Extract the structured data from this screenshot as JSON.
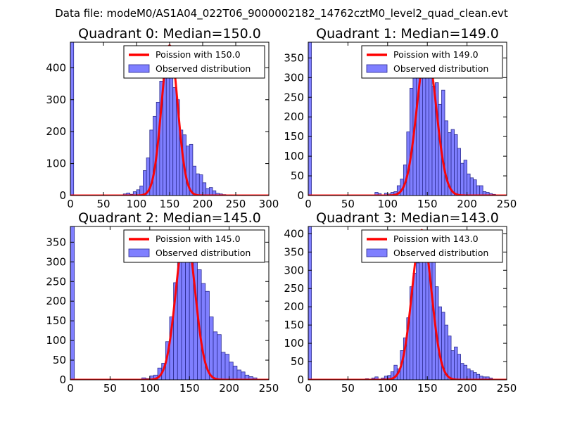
{
  "suptitle": "Data file: modeM0/AS1A04_022T06_9000002182_14762cztM0_level2_quad_clean.evt",
  "colors": {
    "bar_fill": "#7f7fff",
    "bar_edge": "#2a2a8f",
    "fit_line": "#ff0000",
    "axes": "#000000"
  },
  "chart_data": [
    {
      "type": "bar",
      "title": "Quadrant 0: Median=150.0",
      "xlabel": "",
      "ylabel": "",
      "xlim": [
        0,
        300
      ],
      "ylim": [
        0,
        480
      ],
      "xticks": [
        0,
        50,
        100,
        150,
        200,
        250,
        300
      ],
      "yticks": [
        0,
        100,
        200,
        300,
        400
      ],
      "grid": false,
      "legend_position": "top-right",
      "bin_width": 5,
      "bars": [
        {
          "x": 0,
          "v": 480
        },
        {
          "x": 80,
          "v": 5
        },
        {
          "x": 85,
          "v": 8
        },
        {
          "x": 90,
          "v": 4
        },
        {
          "x": 95,
          "v": 12
        },
        {
          "x": 100,
          "v": 18
        },
        {
          "x": 105,
          "v": 30
        },
        {
          "x": 110,
          "v": 78
        },
        {
          "x": 115,
          "v": 118
        },
        {
          "x": 120,
          "v": 205
        },
        {
          "x": 125,
          "v": 248
        },
        {
          "x": 130,
          "v": 292
        },
        {
          "x": 135,
          "v": 358
        },
        {
          "x": 140,
          "v": 375
        },
        {
          "x": 145,
          "v": 370
        },
        {
          "x": 150,
          "v": 378
        },
        {
          "x": 155,
          "v": 338
        },
        {
          "x": 160,
          "v": 300
        },
        {
          "x": 165,
          "v": 205
        },
        {
          "x": 170,
          "v": 190
        },
        {
          "x": 175,
          "v": 155
        },
        {
          "x": 180,
          "v": 160
        },
        {
          "x": 185,
          "v": 92
        },
        {
          "x": 190,
          "v": 68
        },
        {
          "x": 195,
          "v": 65
        },
        {
          "x": 200,
          "v": 40
        },
        {
          "x": 205,
          "v": 22
        },
        {
          "x": 210,
          "v": 25
        },
        {
          "x": 215,
          "v": 15
        },
        {
          "x": 220,
          "v": 7
        },
        {
          "x": 225,
          "v": 5
        },
        {
          "x": 230,
          "v": 3
        },
        {
          "x": 240,
          "v": 2
        },
        {
          "x": 260,
          "v": 1
        }
      ],
      "fit": {
        "mean": 150.0,
        "peak": 470,
        "sigma": 12.2
      },
      "legend": [
        "Poission with 150.0",
        "Observed distribution"
      ]
    },
    {
      "type": "bar",
      "title": "Quadrant 1: Median=149.0",
      "xlabel": "",
      "ylabel": "",
      "xlim": [
        0,
        250
      ],
      "ylim": [
        0,
        390
      ],
      "xticks": [
        0,
        50,
        100,
        150,
        200,
        250
      ],
      "yticks": [
        0,
        50,
        100,
        150,
        200,
        250,
        300,
        350
      ],
      "grid": false,
      "legend_position": "top-right",
      "bin_width": 4,
      "bars": [
        {
          "x": 0,
          "v": 390
        },
        {
          "x": 84,
          "v": 8
        },
        {
          "x": 88,
          "v": 5
        },
        {
          "x": 96,
          "v": 6
        },
        {
          "x": 100,
          "v": 4
        },
        {
          "x": 104,
          "v": 8
        },
        {
          "x": 108,
          "v": 10
        },
        {
          "x": 112,
          "v": 25
        },
        {
          "x": 116,
          "v": 42
        },
        {
          "x": 120,
          "v": 78
        },
        {
          "x": 124,
          "v": 162
        },
        {
          "x": 128,
          "v": 273
        },
        {
          "x": 132,
          "v": 340
        },
        {
          "x": 136,
          "v": 313
        },
        {
          "x": 140,
          "v": 312
        },
        {
          "x": 144,
          "v": 328
        },
        {
          "x": 148,
          "v": 308
        },
        {
          "x": 152,
          "v": 315
        },
        {
          "x": 156,
          "v": 278
        },
        {
          "x": 160,
          "v": 287
        },
        {
          "x": 164,
          "v": 232
        },
        {
          "x": 168,
          "v": 268
        },
        {
          "x": 172,
          "v": 190
        },
        {
          "x": 176,
          "v": 160
        },
        {
          "x": 180,
          "v": 168
        },
        {
          "x": 184,
          "v": 155
        },
        {
          "x": 188,
          "v": 120
        },
        {
          "x": 192,
          "v": 82
        },
        {
          "x": 196,
          "v": 90
        },
        {
          "x": 200,
          "v": 55
        },
        {
          "x": 204,
          "v": 45
        },
        {
          "x": 208,
          "v": 40
        },
        {
          "x": 212,
          "v": 25
        },
        {
          "x": 216,
          "v": 25
        },
        {
          "x": 220,
          "v": 10
        },
        {
          "x": 224,
          "v": 8
        },
        {
          "x": 228,
          "v": 5
        },
        {
          "x": 232,
          "v": 3
        }
      ],
      "fit": {
        "mean": 149.0,
        "peak": 370,
        "sigma": 12.2
      },
      "legend": [
        "Poission with 149.0",
        "Observed distribution"
      ]
    },
    {
      "type": "bar",
      "title": "Quadrant 2: Median=145.0",
      "xlabel": "",
      "ylabel": "",
      "xlim": [
        0,
        250
      ],
      "ylim": [
        0,
        390
      ],
      "xticks": [
        0,
        50,
        100,
        150,
        200,
        250
      ],
      "yticks": [
        0,
        50,
        100,
        150,
        200,
        250,
        300,
        350
      ],
      "grid": false,
      "legend_position": "top-right",
      "bin_width": 5,
      "bars": [
        {
          "x": 0,
          "v": 390
        },
        {
          "x": 90,
          "v": 5
        },
        {
          "x": 95,
          "v": 3
        },
        {
          "x": 100,
          "v": 10
        },
        {
          "x": 105,
          "v": 12
        },
        {
          "x": 110,
          "v": 30
        },
        {
          "x": 115,
          "v": 42
        },
        {
          "x": 120,
          "v": 97
        },
        {
          "x": 125,
          "v": 160
        },
        {
          "x": 130,
          "v": 247
        },
        {
          "x": 135,
          "v": 322
        },
        {
          "x": 140,
          "v": 342
        },
        {
          "x": 145,
          "v": 372
        },
        {
          "x": 150,
          "v": 359
        },
        {
          "x": 155,
          "v": 320
        },
        {
          "x": 160,
          "v": 280
        },
        {
          "x": 165,
          "v": 245
        },
        {
          "x": 170,
          "v": 225
        },
        {
          "x": 175,
          "v": 160
        },
        {
          "x": 180,
          "v": 122
        },
        {
          "x": 185,
          "v": 115
        },
        {
          "x": 190,
          "v": 70
        },
        {
          "x": 195,
          "v": 65
        },
        {
          "x": 200,
          "v": 45
        },
        {
          "x": 205,
          "v": 35
        },
        {
          "x": 210,
          "v": 25
        },
        {
          "x": 215,
          "v": 20
        },
        {
          "x": 220,
          "v": 12
        },
        {
          "x": 225,
          "v": 8
        },
        {
          "x": 230,
          "v": 5
        }
      ],
      "fit": {
        "mean": 145.0,
        "peak": 378,
        "sigma": 12.0
      },
      "legend": [
        "Poission with 145.0",
        "Observed distribution"
      ]
    },
    {
      "type": "bar",
      "title": "Quadrant 3: Median=143.0",
      "xlabel": "",
      "ylabel": "",
      "xlim": [
        0,
        250
      ],
      "ylim": [
        0,
        420
      ],
      "xticks": [
        0,
        50,
        100,
        150,
        200,
        250
      ],
      "yticks": [
        0,
        50,
        100,
        150,
        200,
        250,
        300,
        350,
        400
      ],
      "grid": false,
      "legend_position": "top-right",
      "bin_width": 4,
      "bars": [
        {
          "x": 0,
          "v": 420
        },
        {
          "x": 72,
          "v": 3
        },
        {
          "x": 80,
          "v": 5
        },
        {
          "x": 84,
          "v": 8
        },
        {
          "x": 92,
          "v": 5
        },
        {
          "x": 96,
          "v": 10
        },
        {
          "x": 100,
          "v": 12
        },
        {
          "x": 104,
          "v": 22
        },
        {
          "x": 108,
          "v": 40
        },
        {
          "x": 112,
          "v": 30
        },
        {
          "x": 116,
          "v": 80
        },
        {
          "x": 120,
          "v": 115
        },
        {
          "x": 124,
          "v": 170
        },
        {
          "x": 128,
          "v": 255
        },
        {
          "x": 132,
          "v": 292
        },
        {
          "x": 136,
          "v": 320
        },
        {
          "x": 140,
          "v": 335
        },
        {
          "x": 144,
          "v": 365
        },
        {
          "x": 148,
          "v": 360
        },
        {
          "x": 152,
          "v": 330
        },
        {
          "x": 156,
          "v": 350
        },
        {
          "x": 160,
          "v": 255
        },
        {
          "x": 164,
          "v": 200
        },
        {
          "x": 168,
          "v": 185
        },
        {
          "x": 172,
          "v": 150
        },
        {
          "x": 176,
          "v": 120
        },
        {
          "x": 180,
          "v": 80
        },
        {
          "x": 184,
          "v": 90
        },
        {
          "x": 188,
          "v": 70
        },
        {
          "x": 192,
          "v": 45
        },
        {
          "x": 196,
          "v": 40
        },
        {
          "x": 200,
          "v": 30
        },
        {
          "x": 204,
          "v": 25
        },
        {
          "x": 208,
          "v": 20
        },
        {
          "x": 212,
          "v": 15
        },
        {
          "x": 216,
          "v": 10
        },
        {
          "x": 220,
          "v": 8
        },
        {
          "x": 224,
          "v": 8
        },
        {
          "x": 228,
          "v": 5
        }
      ],
      "fit": {
        "mean": 143.0,
        "peak": 410,
        "sigma": 12.0
      },
      "legend": [
        "Poission with 143.0",
        "Observed distribution"
      ]
    }
  ]
}
